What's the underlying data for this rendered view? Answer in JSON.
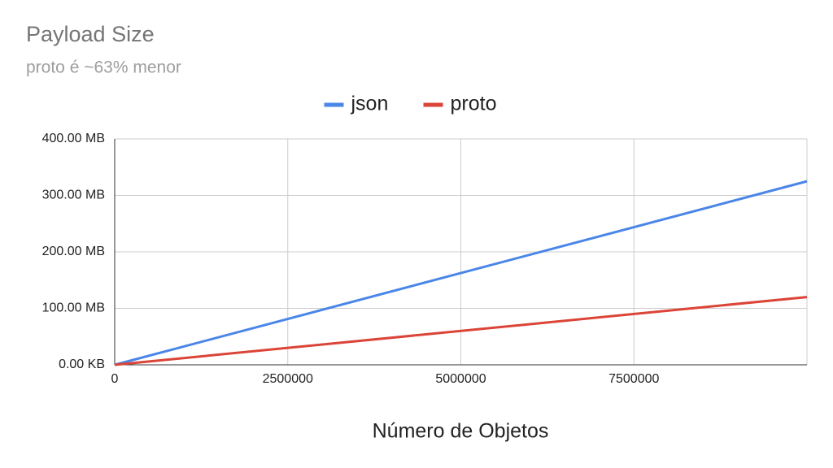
{
  "chart_data": {
    "type": "line",
    "title": "Payload Size",
    "subtitle": "proto é ~63% menor",
    "x_label": "Número de Objetos",
    "x": [
      0,
      10000000
    ],
    "series": [
      {
        "name": "json",
        "color": "#4a86e8",
        "values": [
          0,
          325
        ]
      },
      {
        "name": "proto",
        "color": "#db4437",
        "values": [
          0,
          120
        ]
      }
    ],
    "xlim": [
      0,
      10000000
    ],
    "xticks": [
      0,
      2500000,
      5000000,
      7500000
    ],
    "ylim": [
      0,
      400
    ],
    "yticks": [
      {
        "value": 0,
        "label": "0.00 KB"
      },
      {
        "value": 100,
        "label": "100.00 MB"
      },
      {
        "value": 200,
        "label": "200.00 MB"
      },
      {
        "value": 300,
        "label": "300.00 MB"
      },
      {
        "value": 400,
        "label": "400.00 MB"
      }
    ],
    "grid": true,
    "legend": "top"
  }
}
